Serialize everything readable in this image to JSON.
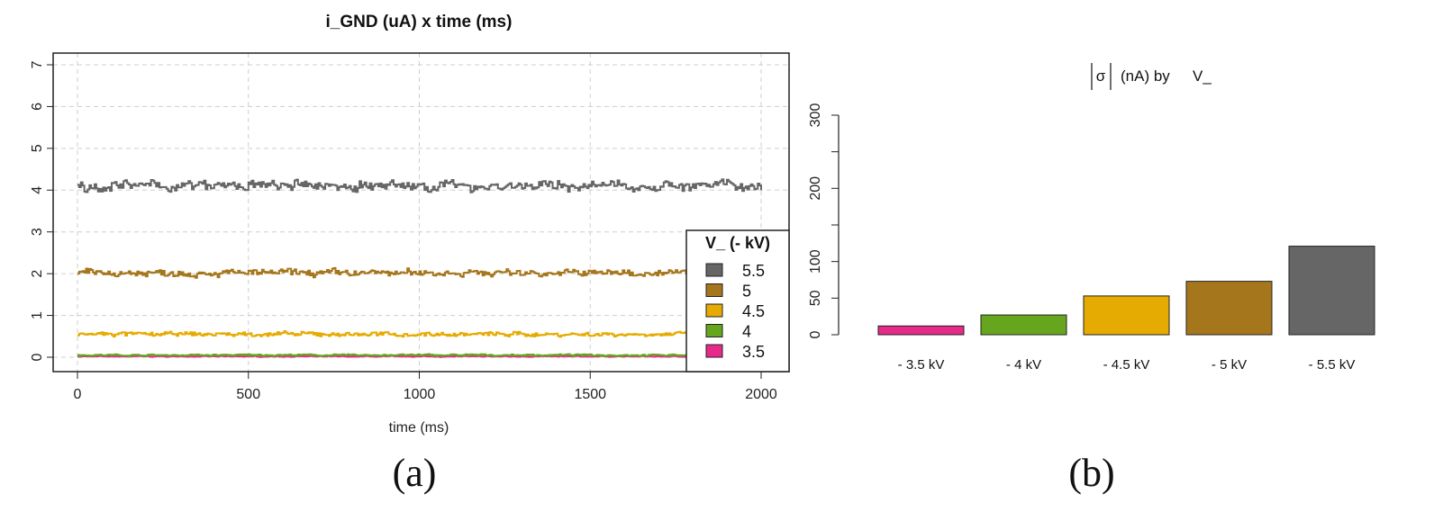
{
  "chart_data": [
    {
      "type": "line",
      "title": "i_GND (uA) x time (ms)",
      "xlabel": "time (ms)",
      "ylabel": "",
      "xlim": [
        0,
        2000
      ],
      "ylim": [
        0,
        7
      ],
      "xticks": [
        "0",
        "500",
        "1000",
        "1500",
        "2000"
      ],
      "yticks": [
        "0",
        "1",
        "2",
        "3",
        "4",
        "5",
        "6",
        "7"
      ],
      "grid": true,
      "legend": {
        "title": "V_ (- kV)",
        "placement": "right"
      },
      "series": [
        {
          "name": "5.5",
          "color": "#666666",
          "mean": 4.1,
          "noise": 0.12
        },
        {
          "name": "5",
          "color": "#a6761d",
          "mean": 2.02,
          "noise": 0.08
        },
        {
          "name": "4.5",
          "color": "#e6ab02",
          "mean": 0.55,
          "noise": 0.05
        },
        {
          "name": "4",
          "color": "#66a61e",
          "mean": 0.05,
          "noise": 0.02
        },
        {
          "name": "3.5",
          "color": "#e7298a",
          "mean": 0.02,
          "noise": 0.01
        }
      ],
      "caption": "(a)"
    },
    {
      "type": "bar",
      "title_sigma": "σ",
      "title_rest": "(nA) by",
      "title_var": "V_",
      "categories": [
        "- 3.5 kV",
        "- 4 kV",
        "- 4.5 kV",
        "- 5 kV",
        "- 5.5 kV"
      ],
      "values": [
        12,
        27,
        53,
        73,
        121
      ],
      "colors": [
        "#e7298a",
        "#66a61e",
        "#e6ab02",
        "#a6761d",
        "#666666"
      ],
      "ylim": [
        0,
        300
      ],
      "yticks": [
        "0",
        "50",
        "100",
        "200",
        "300"
      ],
      "ytick_values": [
        0,
        50,
        100,
        200,
        300
      ],
      "caption": "(b)"
    }
  ]
}
